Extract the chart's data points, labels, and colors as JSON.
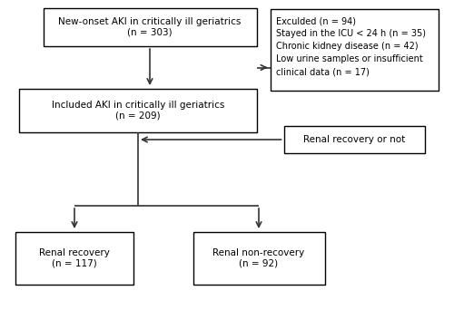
{
  "box1_text": "New-onset AKI in critically ill geriatrics\n(n = 303)",
  "box2_text": "Included AKI in critically ill geriatrics\n(n = 209)",
  "box3_text": "Exculded (n = 94)\nStayed in the ICU < 24 h (n = 35)\nChronic kidney disease (n = 42)\nLow urine samples or insufficient\nclinical data (n = 17)",
  "box4_text": "Renal recovery or not",
  "box5_text": "Renal recovery\n(n = 117)",
  "box6_text": "Renal non-recovery\n(n = 92)",
  "box_edge_color": "#000000",
  "box_face_color": "#ffffff",
  "arrow_color": "#333333",
  "text_color": "#000000",
  "bg_color": "#ffffff",
  "fontsize": 7.5
}
